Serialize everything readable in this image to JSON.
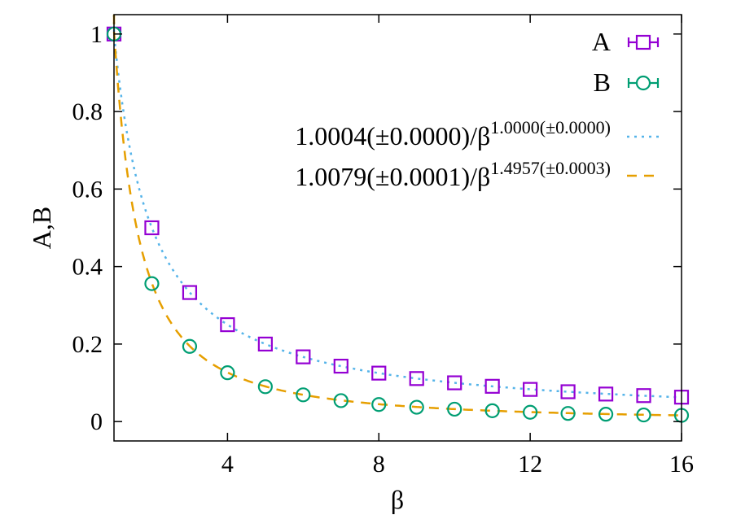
{
  "chart_data": {
    "type": "scatter",
    "title": "",
    "xlabel": "β",
    "ylabel": "A,B",
    "xlim": [
      1,
      16
    ],
    "ylim": [
      -0.05,
      1.05
    ],
    "xticks": [
      4,
      8,
      12,
      16
    ],
    "xtick_labels": [
      "4",
      "8",
      "12",
      "16"
    ],
    "yticks": [
      0,
      0.2,
      0.4,
      0.6,
      0.8,
      1
    ],
    "ytick_labels": [
      "0",
      "0.2",
      "0.4",
      "0.6",
      "0.8",
      "1"
    ],
    "grid": false,
    "legend_position": "top-right",
    "series": [
      {
        "name": "A",
        "kind": "points",
        "marker": "square",
        "color": "#9400d3",
        "x": [
          1,
          2,
          3,
          4,
          5,
          6,
          7,
          8,
          9,
          10,
          11,
          12,
          13,
          14,
          15,
          16
        ],
        "y": [
          1.0,
          0.5,
          0.333,
          0.25,
          0.2,
          0.167,
          0.143,
          0.125,
          0.111,
          0.1,
          0.091,
          0.083,
          0.077,
          0.071,
          0.067,
          0.063
        ]
      },
      {
        "name": "B",
        "kind": "points",
        "marker": "circle",
        "color": "#009e73",
        "x": [
          1,
          2,
          3,
          4,
          5,
          6,
          7,
          8,
          9,
          10,
          11,
          12,
          13,
          14,
          15,
          16
        ],
        "y": [
          1.0,
          0.356,
          0.194,
          0.126,
          0.09,
          0.069,
          0.054,
          0.044,
          0.037,
          0.032,
          0.028,
          0.024,
          0.021,
          0.019,
          0.017,
          0.016
        ]
      },
      {
        "name_main": "1.0004(±0.0000)/β",
        "name_sup": "1.0000(±0.0000)",
        "kind": "fit",
        "style": "dotted",
        "color": "#56b4e9",
        "coef": 1.0004,
        "exponent": 1.0
      },
      {
        "name_main": "1.0079(±0.0001)/β",
        "name_sup": "1.4957(±0.0003)",
        "kind": "fit",
        "style": "dashed",
        "color": "#e69f00",
        "coef": 1.0079,
        "exponent": 1.4957
      }
    ]
  }
}
